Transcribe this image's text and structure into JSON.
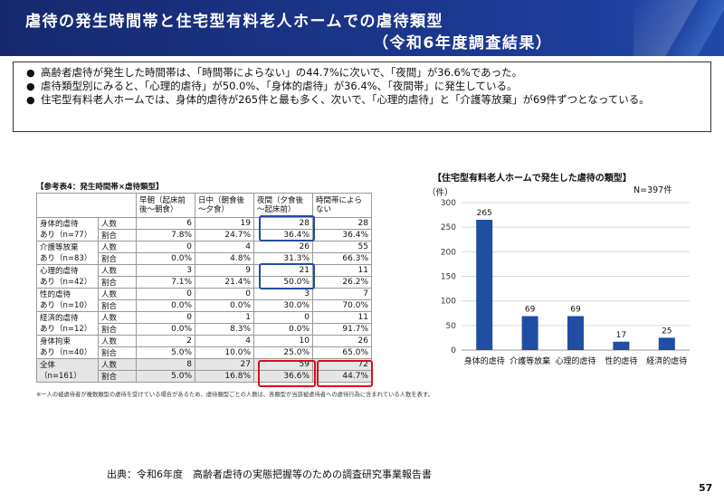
{
  "header": {
    "title": "虐待の発生時間帯と住宅型有料老人ホームでの虐待類型",
    "subtitle": "（令和6年度調査結果）"
  },
  "summary": [
    "高齢者虐待が発生した時間帯は、「時間帯によらない」の44.7%に次いで、「夜間」が36.6%であった。",
    "虐待類型別にみると、「心理的虐待」が50.0%、「身体的虐待」が36.4%、「夜間帯」に発生している。",
    "住宅型有料老人ホームでは、身体的虐待が265件と最も多く、次いで、「心理的虐待」と「介護等放棄」が69件ずつとなっている。"
  ],
  "table": {
    "title": "【参考表4：発生時間帯×虐待類型】",
    "columns": [
      "早朝（起床前後～朝食）",
      "日中（朝食後～夕食）",
      "夜間（夕食後～起床前）",
      "時間帯によらない"
    ],
    "metric_labels": [
      "人数",
      "割合"
    ],
    "rows": [
      {
        "cat1": "身体的虐待",
        "cat2": "あり（n=77）",
        "counts": [
          "6",
          "19",
          "28",
          "28"
        ],
        "pcts": [
          "7.8%",
          "24.7%",
          "36.4%",
          "36.4%"
        ]
      },
      {
        "cat1": "介護等放棄",
        "cat2": "あり（n=83）",
        "counts": [
          "0",
          "4",
          "26",
          "55"
        ],
        "pcts": [
          "0.0%",
          "4.8%",
          "31.3%",
          "66.3%"
        ]
      },
      {
        "cat1": "心理的虐待",
        "cat2": "あり（n=42）",
        "counts": [
          "3",
          "9",
          "21",
          "11"
        ],
        "pcts": [
          "7.1%",
          "21.4%",
          "50.0%",
          "26.2%"
        ]
      },
      {
        "cat1": "性的虐待",
        "cat2": "あり（n=10）",
        "counts": [
          "0",
          "0",
          "3",
          "7"
        ],
        "pcts": [
          "0.0%",
          "0.0%",
          "30.0%",
          "70.0%"
        ]
      },
      {
        "cat1": "経済的虐待",
        "cat2": "あり（n=12）",
        "counts": [
          "0",
          "1",
          "0",
          "11"
        ],
        "pcts": [
          "0.0%",
          "8.3%",
          "0.0%",
          "91.7%"
        ]
      },
      {
        "cat1": "身体拘束",
        "cat2": "あり（n=40）",
        "counts": [
          "2",
          "4",
          "10",
          "26"
        ],
        "pcts": [
          "5.0%",
          "10.0%",
          "25.0%",
          "65.0%"
        ]
      },
      {
        "cat1": "全体",
        "cat2": "（n=161）",
        "counts": [
          "8",
          "27",
          "59",
          "72"
        ],
        "pcts": [
          "5.0%",
          "16.8%",
          "36.6%",
          "44.7%"
        ]
      }
    ],
    "note": "※一人の被虐待者が複数類型の虐待を受けている場合があるため、虐待類型ごとの人数は、各類型が当該被虐待者への虐待行為に含まれている人数を表す。"
  },
  "chart_data": {
    "type": "bar",
    "title": "【住宅型有料老人ホームで発生した虐待の類型】",
    "n_label": "N=397件",
    "ylabel": "（件）",
    "categories": [
      "身体的虐待",
      "介護等放棄",
      "心理的虐待",
      "性的虐待",
      "経済的虐待"
    ],
    "values": [
      265,
      69,
      69,
      17,
      25
    ],
    "ylim": [
      0,
      300
    ],
    "yticks": [
      0,
      50,
      100,
      150,
      200,
      250,
      300
    ],
    "grid": true,
    "bar_color": "#1f4ea3"
  },
  "footer": {
    "source": "出典：令和6年度　高齢者虐待の実態把握等のための調査研究事業報告書",
    "page": "57"
  }
}
